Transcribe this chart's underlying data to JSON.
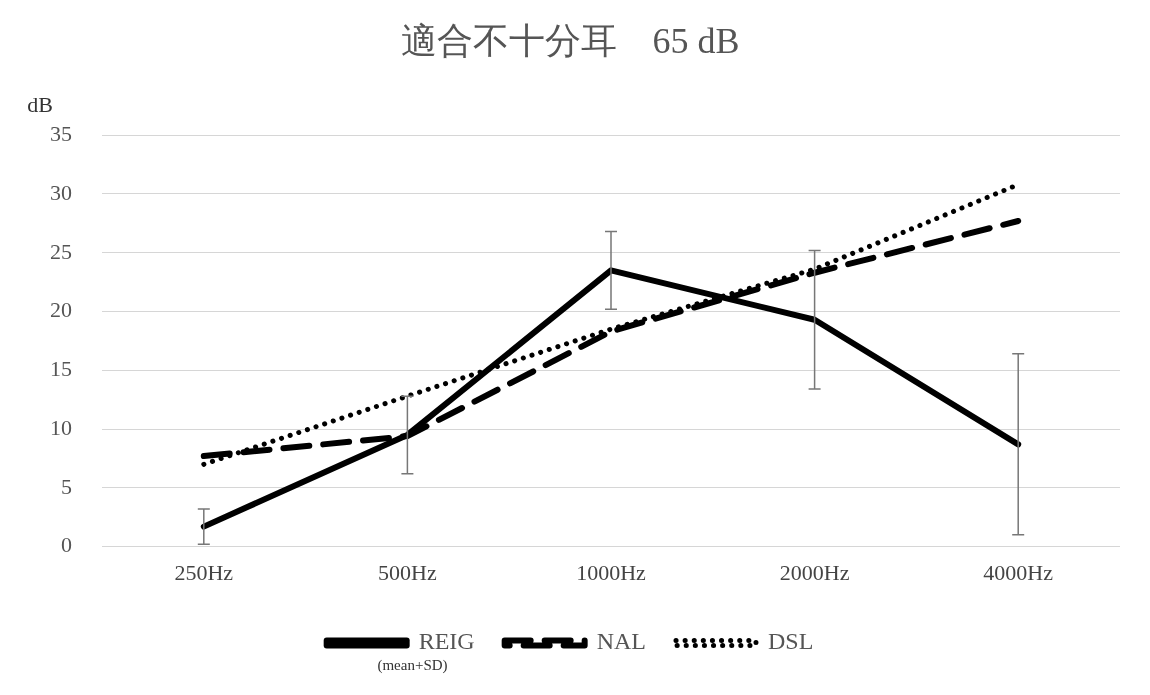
{
  "chart_data": {
    "type": "line",
    "title": "適合不十分耳　65 dB",
    "ylabel": "dB",
    "categories": [
      "250Hz",
      "500Hz",
      "1000Hz",
      "2000Hz",
      "4000Hz"
    ],
    "series": [
      {
        "name": "REIG",
        "color": "#000000",
        "line_style": "solid",
        "values": [
          1.7,
          9.5,
          23.5,
          19.3,
          8.7
        ],
        "errors": [
          1.5,
          3.3,
          3.3,
          5.9,
          7.7
        ]
      },
      {
        "name": "NAL",
        "color": "#000000",
        "line_style": "dashed",
        "values": [
          7.7,
          9.4,
          18.3,
          23.3,
          27.7
        ]
      },
      {
        "name": "DSL",
        "color": "#000000",
        "line_style": "dotted",
        "values": [
          7.0,
          12.8,
          18.5,
          23.6,
          30.8
        ]
      }
    ],
    "annotations": [
      "(mean+SD)"
    ],
    "ylim": [
      0,
      35
    ],
    "yticks": [
      0,
      5,
      10,
      15,
      20,
      25,
      30,
      35
    ],
    "grid": "y",
    "legend": "bottom",
    "marker": "none"
  }
}
